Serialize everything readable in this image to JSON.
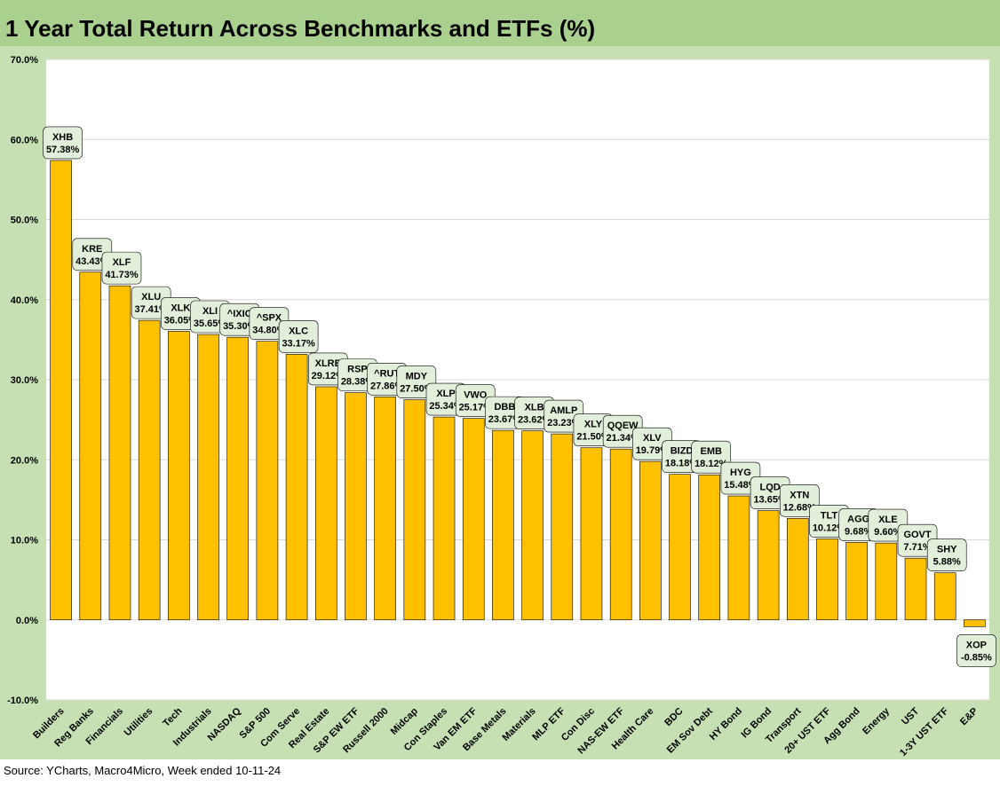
{
  "title": "1 Year Total Return Across Benchmarks and ETFs (%)",
  "source": "Source: YCharts, Macro4Micro, Week ended 10-11-24",
  "colors": {
    "bar": "#ffc000",
    "bar_stroke": "#000000",
    "frame": "#c6e0b4",
    "title_bar": "#a9d08e",
    "plot_bg": "#ffffff",
    "label_box": "#e2efda",
    "grid": "#d9d9d9"
  },
  "chart_data": {
    "type": "bar",
    "ylim": [
      -10,
      70
    ],
    "yticks": [
      -10,
      0,
      10,
      20,
      30,
      40,
      50,
      60,
      70
    ],
    "ytick_labels": [
      "-10.0%",
      "0.0%",
      "10.0%",
      "20.0%",
      "30.0%",
      "40.0%",
      "50.0%",
      "60.0%",
      "70.0%"
    ],
    "grid": true,
    "categories": [
      "Builders",
      "Reg Banks",
      "Financials",
      "Utilities",
      "Tech",
      "Industrials",
      "NASDAQ",
      "S&P 500",
      "Com Serve",
      "Real Estate",
      "S&P EW ETF",
      "Russell 2000",
      "Midcap",
      "Con Staples",
      "Van EM ETF",
      "Base Metals",
      "Materials",
      "MLP ETF",
      "Con Disc",
      "NAS-EW ETF",
      "Health Care",
      "BDC",
      "EM Sov Debt",
      "HY Bond",
      "IG Bond",
      "Transport",
      "20+ UST ETF",
      "Agg Bond",
      "Energy",
      "UST",
      "1-3Y UST ETF",
      "E&P"
    ],
    "tickers": [
      "XHB",
      "KRE",
      "XLF",
      "XLU",
      "XLK",
      "XLI",
      "^IXIC",
      "^SPX",
      "XLC",
      "XLRE",
      "RSP",
      "^RUT",
      "MDY",
      "XLP",
      "VWO",
      "DBB",
      "XLB",
      "AMLP",
      "XLY",
      "QQEW",
      "XLV",
      "BIZD",
      "EMB",
      "HYG",
      "LQD",
      "XTN",
      "TLT",
      "AGG",
      "XLE",
      "GOVT",
      "SHY",
      "XOP"
    ],
    "values": [
      57.38,
      43.43,
      41.73,
      37.41,
      36.05,
      35.65,
      35.3,
      34.8,
      33.17,
      29.12,
      28.38,
      27.86,
      27.5,
      25.34,
      25.17,
      23.67,
      23.62,
      23.23,
      21.5,
      21.34,
      19.79,
      18.18,
      18.12,
      15.48,
      13.65,
      12.68,
      10.12,
      9.68,
      9.6,
      7.71,
      5.88,
      -0.85
    ],
    "value_labels": [
      "57.38%",
      "43.43%",
      "41.73%",
      "37.41%",
      "36.05%",
      "35.65%",
      "35.30%",
      "34.80%",
      "33.17%",
      "29.12%",
      "28.38%",
      "27.86%",
      "27.50%",
      "25.34%",
      "25.17%",
      "23.67%",
      "23.62%",
      "23.23%",
      "21.50%",
      "21.34%",
      "19.79%",
      "18.18%",
      "18.12%",
      "15.48%",
      "13.65%",
      "12.68%",
      "10.12%",
      "9.68%",
      "9.60%",
      "7.71%",
      "5.88%",
      "-0.85%"
    ]
  }
}
